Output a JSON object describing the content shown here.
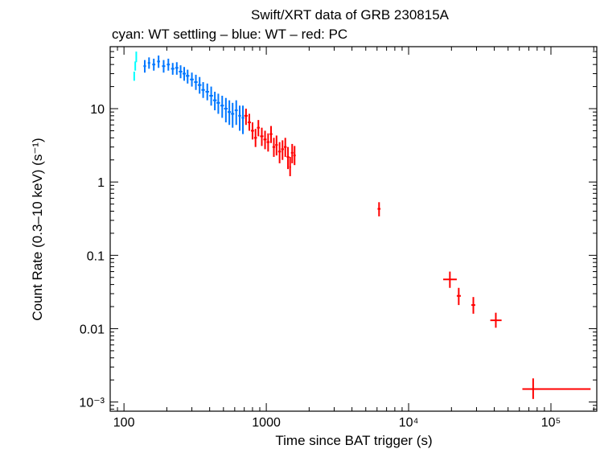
{
  "chart_data": {
    "type": "scatter",
    "title": "Swift/XRT data of GRB 230815A",
    "subtitle": "cyan: WT settling – blue: WT – red: PC",
    "xlabel": "Time since BAT trigger (s)",
    "ylabel": "Count Rate (0.3–10 keV) (s⁻¹)",
    "x_scale": "log",
    "y_scale": "log",
    "xlim": [
      80,
      210000
    ],
    "ylim": [
      0.00075,
      70
    ],
    "grid": false,
    "x_ticks": [
      {
        "value": 100,
        "label": "100"
      },
      {
        "value": 1000,
        "label": "1000"
      },
      {
        "value": 10000,
        "label": "10⁴"
      },
      {
        "value": 100000,
        "label": "10⁵"
      }
    ],
    "y_ticks": [
      {
        "value": 10,
        "label": "10"
      },
      {
        "value": 1,
        "label": "1"
      },
      {
        "value": 0.1,
        "label": "0.1"
      },
      {
        "value": 0.01,
        "label": "0.01"
      },
      {
        "value": 0.001,
        "label": "10⁻³"
      }
    ],
    "series": [
      {
        "name": "WT settling",
        "color": "#00ffff",
        "points": [
          {
            "x": 118,
            "y": 28,
            "xlo": 117,
            "xhi": 119,
            "ylo": 24,
            "yhi": 32
          },
          {
            "x": 120,
            "y": 38,
            "xlo": 119,
            "xhi": 121,
            "ylo": 33,
            "yhi": 44
          },
          {
            "x": 122,
            "y": 50,
            "xlo": 121,
            "xhi": 123,
            "ylo": 43,
            "yhi": 60
          }
        ]
      },
      {
        "name": "WT",
        "color": "#0077ff",
        "points": [
          {
            "x": 140,
            "y": 38,
            "xlo": 137,
            "xhi": 143,
            "ylo": 31,
            "yhi": 46
          },
          {
            "x": 150,
            "y": 42,
            "xlo": 147,
            "xhi": 153,
            "ylo": 35,
            "yhi": 50
          },
          {
            "x": 162,
            "y": 40,
            "xlo": 158,
            "xhi": 166,
            "ylo": 33,
            "yhi": 48
          },
          {
            "x": 175,
            "y": 44,
            "xlo": 171,
            "xhi": 179,
            "ylo": 36,
            "yhi": 53
          },
          {
            "x": 190,
            "y": 38,
            "xlo": 185,
            "xhi": 195,
            "ylo": 31,
            "yhi": 46
          },
          {
            "x": 205,
            "y": 40,
            "xlo": 200,
            "xhi": 210,
            "ylo": 33,
            "yhi": 48
          },
          {
            "x": 220,
            "y": 35,
            "xlo": 214,
            "xhi": 226,
            "ylo": 29,
            "yhi": 42
          },
          {
            "x": 235,
            "y": 36,
            "xlo": 229,
            "xhi": 241,
            "ylo": 29,
            "yhi": 43
          },
          {
            "x": 250,
            "y": 32,
            "xlo": 243,
            "xhi": 257,
            "ylo": 26,
            "yhi": 39
          },
          {
            "x": 265,
            "y": 30,
            "xlo": 258,
            "xhi": 272,
            "ylo": 24,
            "yhi": 37
          },
          {
            "x": 280,
            "y": 28,
            "xlo": 272,
            "xhi": 288,
            "ylo": 22,
            "yhi": 34
          },
          {
            "x": 300,
            "y": 25,
            "xlo": 291,
            "xhi": 309,
            "ylo": 20,
            "yhi": 31
          },
          {
            "x": 320,
            "y": 23,
            "xlo": 311,
            "xhi": 329,
            "ylo": 18,
            "yhi": 29
          },
          {
            "x": 340,
            "y": 21,
            "xlo": 330,
            "xhi": 350,
            "ylo": 16,
            "yhi": 27
          },
          {
            "x": 360,
            "y": 18,
            "xlo": 350,
            "xhi": 370,
            "ylo": 14,
            "yhi": 23
          },
          {
            "x": 385,
            "y": 17,
            "xlo": 374,
            "xhi": 396,
            "ylo": 13,
            "yhi": 22
          },
          {
            "x": 410,
            "y": 15,
            "xlo": 398,
            "xhi": 422,
            "ylo": 11,
            "yhi": 20
          },
          {
            "x": 435,
            "y": 13,
            "xlo": 422,
            "xhi": 448,
            "ylo": 9.5,
            "yhi": 17
          },
          {
            "x": 460,
            "y": 12,
            "xlo": 447,
            "xhi": 473,
            "ylo": 8.5,
            "yhi": 16
          },
          {
            "x": 490,
            "y": 11,
            "xlo": 476,
            "xhi": 504,
            "ylo": 7.5,
            "yhi": 15
          },
          {
            "x": 520,
            "y": 10,
            "xlo": 505,
            "xhi": 535,
            "ylo": 6.5,
            "yhi": 14
          },
          {
            "x": 550,
            "y": 9,
            "xlo": 535,
            "xhi": 565,
            "ylo": 6,
            "yhi": 13
          },
          {
            "x": 580,
            "y": 8.5,
            "xlo": 565,
            "xhi": 595,
            "ylo": 5.5,
            "yhi": 12
          },
          {
            "x": 615,
            "y": 9.5,
            "xlo": 600,
            "xhi": 630,
            "ylo": 6,
            "yhi": 13
          },
          {
            "x": 650,
            "y": 8,
            "xlo": 635,
            "xhi": 665,
            "ylo": 5,
            "yhi": 11
          },
          {
            "x": 685,
            "y": 7.5,
            "xlo": 670,
            "xhi": 700,
            "ylo": 4.5,
            "yhi": 11
          }
        ]
      },
      {
        "name": "PC",
        "color": "#ff0000",
        "points": [
          {
            "x": 720,
            "y": 8,
            "xlo": 700,
            "xhi": 740,
            "ylo": 6,
            "yhi": 10
          },
          {
            "x": 760,
            "y": 6.5,
            "xlo": 740,
            "xhi": 780,
            "ylo": 5,
            "yhi": 8.5
          },
          {
            "x": 800,
            "y": 5,
            "xlo": 780,
            "xhi": 820,
            "ylo": 3.8,
            "yhi": 6.5
          },
          {
            "x": 840,
            "y": 4,
            "xlo": 820,
            "xhi": 860,
            "ylo": 3,
            "yhi": 5.3
          },
          {
            "x": 880,
            "y": 5.5,
            "xlo": 860,
            "xhi": 900,
            "ylo": 4.2,
            "yhi": 7
          },
          {
            "x": 930,
            "y": 4.2,
            "xlo": 905,
            "xhi": 955,
            "ylo": 3.1,
            "yhi": 5.5
          },
          {
            "x": 980,
            "y": 3.8,
            "xlo": 955,
            "xhi": 1005,
            "ylo": 2.8,
            "yhi": 5
          },
          {
            "x": 1030,
            "y": 3.5,
            "xlo": 1005,
            "xhi": 1055,
            "ylo": 2.6,
            "yhi": 4.6
          },
          {
            "x": 1080,
            "y": 4.5,
            "xlo": 1055,
            "xhi": 1105,
            "ylo": 3.4,
            "yhi": 5.8
          },
          {
            "x": 1130,
            "y": 3,
            "xlo": 1105,
            "xhi": 1155,
            "ylo": 2.2,
            "yhi": 4
          },
          {
            "x": 1180,
            "y": 3.2,
            "xlo": 1155,
            "xhi": 1205,
            "ylo": 2.3,
            "yhi": 4.3
          },
          {
            "x": 1240,
            "y": 2.6,
            "xlo": 1210,
            "xhi": 1270,
            "ylo": 1.8,
            "yhi": 3.5
          },
          {
            "x": 1300,
            "y": 2.8,
            "xlo": 1270,
            "xhi": 1330,
            "ylo": 2,
            "yhi": 3.7
          },
          {
            "x": 1360,
            "y": 3,
            "xlo": 1330,
            "xhi": 1390,
            "ylo": 2.2,
            "yhi": 4
          },
          {
            "x": 1420,
            "y": 2.2,
            "xlo": 1390,
            "xhi": 1450,
            "ylo": 1.5,
            "yhi": 3
          },
          {
            "x": 1470,
            "y": 1.6,
            "xlo": 1450,
            "xhi": 1490,
            "ylo": 1.2,
            "yhi": 2.2
          },
          {
            "x": 1520,
            "y": 2.5,
            "xlo": 1490,
            "xhi": 1550,
            "ylo": 1.8,
            "yhi": 3.3
          },
          {
            "x": 1580,
            "y": 2.3,
            "xlo": 1550,
            "xhi": 1610,
            "ylo": 1.7,
            "yhi": 3.1
          },
          {
            "x": 6200,
            "y": 0.43,
            "xlo": 6050,
            "xhi": 6350,
            "ylo": 0.34,
            "yhi": 0.53
          },
          {
            "x": 19500,
            "y": 0.047,
            "xlo": 17500,
            "xhi": 21800,
            "ylo": 0.036,
            "yhi": 0.06
          },
          {
            "x": 22500,
            "y": 0.028,
            "xlo": 21800,
            "xhi": 23300,
            "ylo": 0.021,
            "yhi": 0.036
          },
          {
            "x": 28500,
            "y": 0.021,
            "xlo": 27600,
            "xhi": 29400,
            "ylo": 0.016,
            "yhi": 0.027
          },
          {
            "x": 41000,
            "y": 0.013,
            "xlo": 37500,
            "xhi": 45000,
            "ylo": 0.0103,
            "yhi": 0.0165
          },
          {
            "x": 75000,
            "y": 0.0015,
            "xlo": 63000,
            "xhi": 190000,
            "ylo": 0.0011,
            "yhi": 0.0021
          }
        ]
      }
    ]
  }
}
